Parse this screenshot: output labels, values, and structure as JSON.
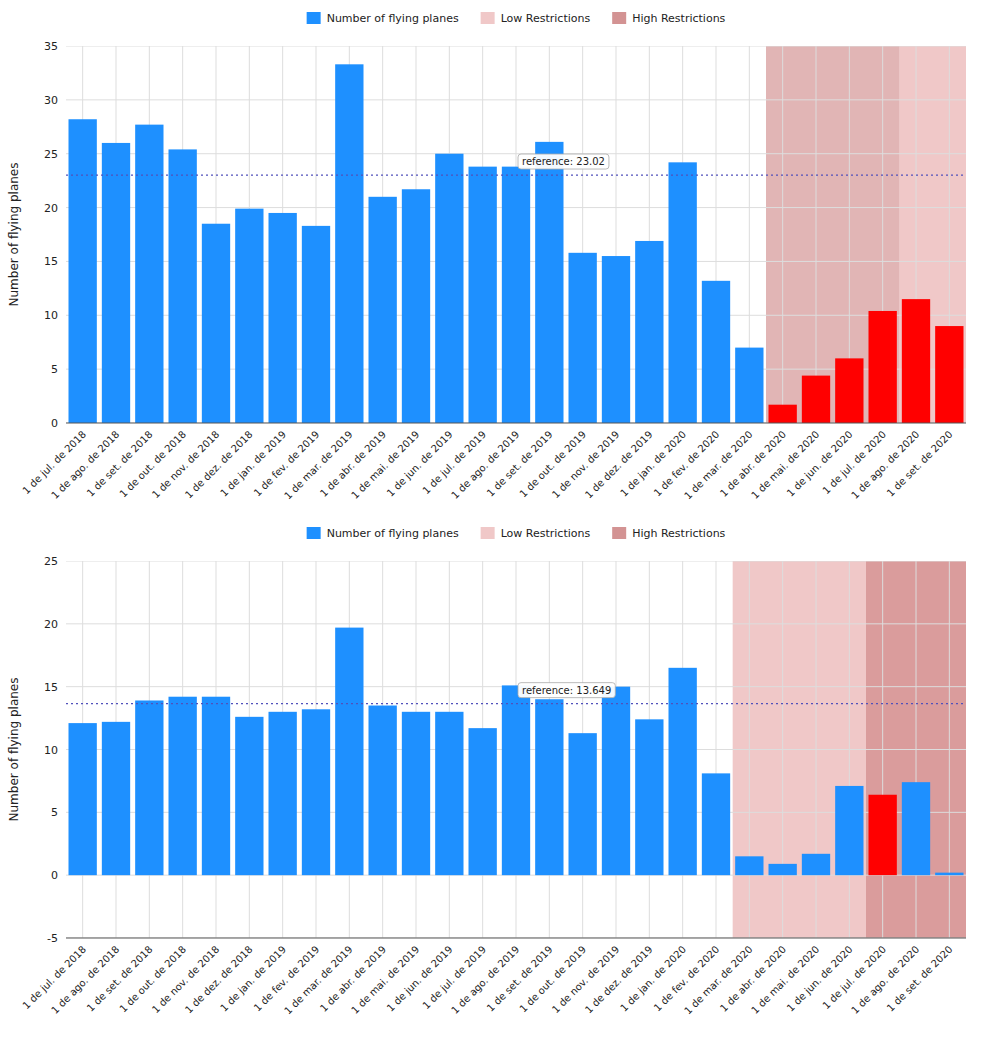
{
  "chart_data": [
    {
      "type": "bar",
      "categories": [
        "1 de jul. de 2018",
        "1 de ago. de 2018",
        "1 de set. de 2018",
        "1 de out. de 2018",
        "1 de nov. de 2018",
        "1 de dez. de 2018",
        "1 de jan. de 2019",
        "1 de fev. de 2019",
        "1 de mar. de 2019",
        "1 de abr. de 2019",
        "1 de mai. de 2019",
        "1 de jun. de 2019",
        "1 de jul. de 2019",
        "1 de ago. de 2019",
        "1 de set. de 2019",
        "1 de out. de 2019",
        "1 de nov. de 2019",
        "1 de dez. de 2019",
        "1 de jan. de 2020",
        "1 de fev. de 2020",
        "1 de mar. de 2020",
        "1 de abr. de 2020",
        "1 de mai. de 2020",
        "1 de jun. de 2020",
        "1 de jul. de 2020",
        "1 de ago. de 2020",
        "1 de set. de 2020"
      ],
      "series": [
        {
          "name": "Number of flying planes",
          "color": "#1e90ff",
          "colors": [
            "#1e90ff",
            "#1e90ff",
            "#1e90ff",
            "#1e90ff",
            "#1e90ff",
            "#1e90ff",
            "#1e90ff",
            "#1e90ff",
            "#1e90ff",
            "#1e90ff",
            "#1e90ff",
            "#1e90ff",
            "#1e90ff",
            "#1e90ff",
            "#1e90ff",
            "#1e90ff",
            "#1e90ff",
            "#1e90ff",
            "#1e90ff",
            "#1e90ff",
            "#1e90ff",
            "#ff0000",
            "#ff0000",
            "#ff0000",
            "#ff0000",
            "#ff0000",
            "#ff0000"
          ],
          "values": [
            28.2,
            26.0,
            27.7,
            25.4,
            18.5,
            19.9,
            19.5,
            18.3,
            33.3,
            21.0,
            21.7,
            25.0,
            23.8,
            23.8,
            26.1,
            15.8,
            15.5,
            16.9,
            24.2,
            13.2,
            7.0,
            1.7,
            4.4,
            6.0,
            10.4,
            11.5,
            9.0
          ]
        }
      ],
      "regions": [
        {
          "name": "Low Restrictions",
          "color": "#f0c8c8",
          "from": "1 de ago. de 2020",
          "to": "1 de set. de 2020"
        },
        {
          "name": "High Restrictions",
          "color": "#c87878",
          "from": "1 de abr. de 2020",
          "to": "1 de jul. de 2020"
        }
      ],
      "reference_line": {
        "value": 23.02,
        "label": "reference: 23.02",
        "color": "#5050bb"
      },
      "ylabel": "Number of flying planes",
      "ylim": [
        0,
        35
      ],
      "yticks": [
        0,
        5,
        10,
        15,
        20,
        25,
        30,
        35
      ],
      "grid": true,
      "legend": "top"
    },
    {
      "type": "bar",
      "categories": [
        "1 de jul. de 2018",
        "1 de ago. de 2018",
        "1 de set. de 2018",
        "1 de out. de 2018",
        "1 de nov. de 2018",
        "1 de dez. de 2018",
        "1 de jan. de 2019",
        "1 de fev. de 2019",
        "1 de mar. de 2019",
        "1 de abr. de 2019",
        "1 de mai. de 2019",
        "1 de jun. de 2019",
        "1 de jul. de 2019",
        "1 de ago. de 2019",
        "1 de set. de 2019",
        "1 de out. de 2019",
        "1 de nov. de 2019",
        "1 de dez. de 2019",
        "1 de jan. de 2020",
        "1 de fev. de 2020",
        "1 de mar. de 2020",
        "1 de abr. de 2020",
        "1 de mai. de 2020",
        "1 de jun. de 2020",
        "1 de jul. de 2020",
        "1 de ago. de 2020",
        "1 de set. de 2020"
      ],
      "series": [
        {
          "name": "Number of flying planes",
          "color": "#1e90ff",
          "colors": [
            "#1e90ff",
            "#1e90ff",
            "#1e90ff",
            "#1e90ff",
            "#1e90ff",
            "#1e90ff",
            "#1e90ff",
            "#1e90ff",
            "#1e90ff",
            "#1e90ff",
            "#1e90ff",
            "#1e90ff",
            "#1e90ff",
            "#1e90ff",
            "#1e90ff",
            "#1e90ff",
            "#1e90ff",
            "#1e90ff",
            "#1e90ff",
            "#1e90ff",
            "#1e90ff",
            "#1e90ff",
            "#1e90ff",
            "#1e90ff",
            "#ff0000",
            "#1e90ff",
            "#1e90ff"
          ],
          "values": [
            12.1,
            12.2,
            13.9,
            14.2,
            14.2,
            12.6,
            13.0,
            13.2,
            19.7,
            13.5,
            13.0,
            13.0,
            11.7,
            15.1,
            14.0,
            11.3,
            15.0,
            12.4,
            16.5,
            8.1,
            1.5,
            0.9,
            1.7,
            7.1,
            6.4,
            7.4,
            0.2
          ]
        }
      ],
      "regions": [
        {
          "name": "Low Restrictions",
          "color": "#f0c8c8",
          "from": "1 de mar. de 2020",
          "to": "1 de set. de 2020"
        },
        {
          "name": "High Restrictions",
          "color": "#c87878",
          "from": "1 de jul. de 2020",
          "to": "1 de set. de 2020"
        }
      ],
      "reference_line": {
        "value": 13.649,
        "label": "reference: 13.649",
        "color": "#5050bb"
      },
      "ylabel": "Number of flying planes",
      "ylim": [
        -5,
        25
      ],
      "yticks": [
        -5,
        0,
        5,
        10,
        15,
        20,
        25
      ],
      "grid": true,
      "legend": "top"
    }
  ]
}
